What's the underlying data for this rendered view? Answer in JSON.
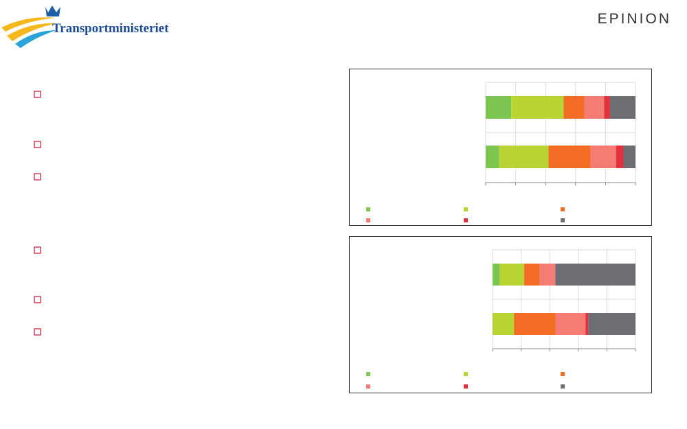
{
  "header": {
    "logo_text": "Transportministeriet",
    "brand": "EPINION"
  },
  "chart_data": [
    {
      "type": "bar",
      "orientation": "horizontal",
      "stacked": true,
      "categories": [
        null,
        null
      ],
      "series": [
        {
          "color": "#7dc451",
          "values": [
            17,
            9
          ]
        },
        {
          "color": "#b9d533",
          "values": [
            35,
            33
          ]
        },
        {
          "color": "#f26c23",
          "values": [
            14,
            28
          ]
        },
        {
          "color": "#f47c74",
          "values": [
            13,
            17
          ]
        },
        {
          "color": "#e3323f",
          "values": [
            4,
            5
          ]
        },
        {
          "color": "#6d6e71",
          "values": [
            17,
            8
          ]
        }
      ],
      "xlim": [
        0,
        100
      ],
      "xticks": [
        0,
        20,
        40,
        60,
        80,
        100
      ],
      "grid": true
    },
    {
      "type": "bar",
      "orientation": "horizontal",
      "stacked": true,
      "categories": [
        null,
        null
      ],
      "series": [
        {
          "color": "#7dc451",
          "values": [
            5,
            0
          ]
        },
        {
          "color": "#b9d533",
          "values": [
            17,
            15
          ]
        },
        {
          "color": "#f26c23",
          "values": [
            11,
            29
          ]
        },
        {
          "color": "#f47c74",
          "values": [
            11,
            21
          ]
        },
        {
          "color": "#e3323f",
          "values": [
            0,
            2
          ]
        },
        {
          "color": "#6d6e71",
          "values": [
            56,
            33
          ]
        }
      ],
      "xlim": [
        0,
        100
      ],
      "xticks": [
        0,
        20,
        40,
        60,
        80,
        100
      ],
      "grid": true
    }
  ]
}
